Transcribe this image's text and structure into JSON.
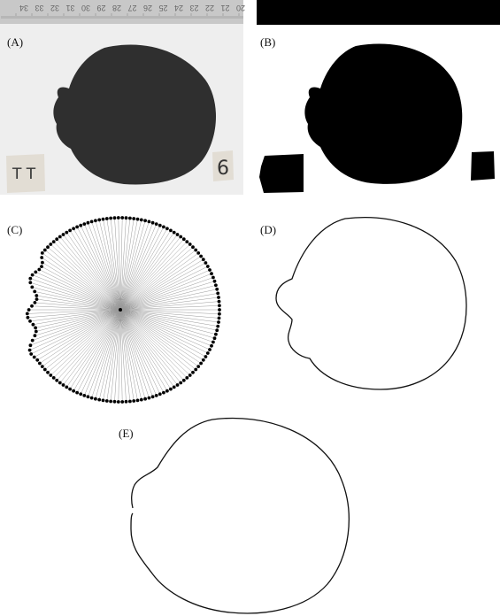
{
  "panels": {
    "a": {
      "label": "(A)",
      "tag_left": "T T",
      "tag_right": "6",
      "ruler_numbers": [
        "34",
        "33",
        "32",
        "31",
        "30",
        "29",
        "28",
        "27",
        "26",
        "25",
        "24",
        "23",
        "22",
        "21",
        "20"
      ]
    },
    "b": {
      "label": "(B)"
    },
    "c": {
      "label": "(C)",
      "point_count": 150
    },
    "d": {
      "label": "(D)"
    },
    "e": {
      "label": "(E)"
    }
  },
  "colors": {
    "photo_bg": "#eeeeee",
    "fruit": "#2f2f2f",
    "mask": "#000000",
    "ruler": "#c8c8c8",
    "tag": "#e2ddd4",
    "ray": "#9a9a9a",
    "outline": "#111111"
  }
}
